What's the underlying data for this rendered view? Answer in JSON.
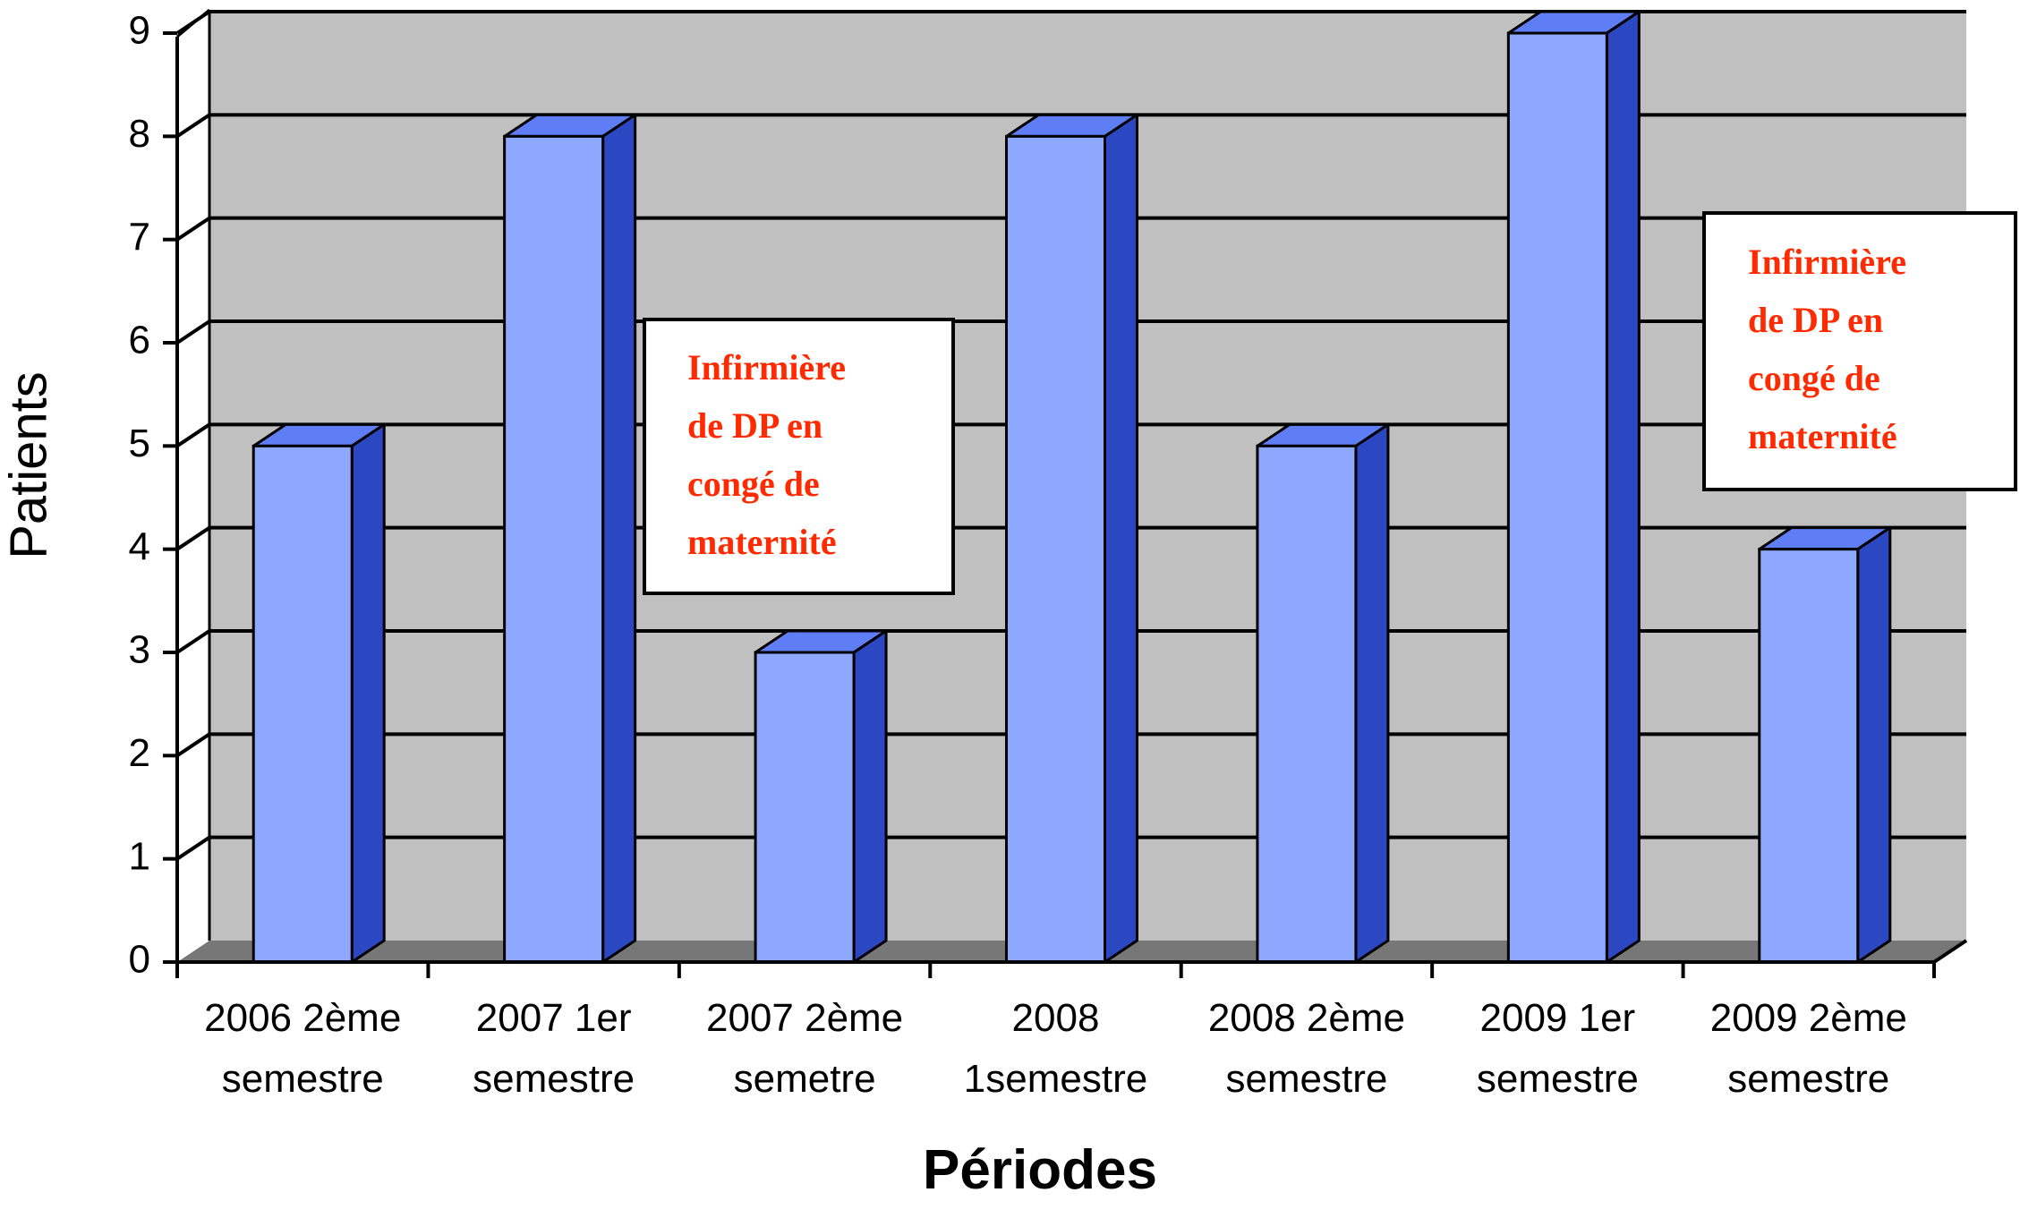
{
  "chart_data": {
    "type": "bar",
    "style": "3d-column",
    "xlabel": "Périodes",
    "ylabel": "Patients",
    "ylim": [
      0,
      9
    ],
    "yticks": [
      0,
      1,
      2,
      3,
      4,
      5,
      6,
      7,
      8,
      9
    ],
    "grid": true,
    "legend": "none",
    "categories": [
      [
        "2006 2ème",
        "semestre"
      ],
      [
        "2007 1er",
        "semestre"
      ],
      [
        "2007 2ème",
        "semetre"
      ],
      [
        "2008",
        "1semestre"
      ],
      [
        "2008 2ème",
        "semestre"
      ],
      [
        "2009 1er",
        "semestre"
      ],
      [
        "2009 2ème",
        "semestre"
      ]
    ],
    "values": [
      5,
      8,
      3,
      8,
      5,
      9,
      4
    ],
    "annotations": [
      {
        "lines": [
          "Infirmière",
          "de DP  en",
          "congé de",
          "maternité"
        ],
        "after_category": 2
      },
      {
        "lines": [
          "Infirmière",
          "de DP  en",
          "congé de",
          "maternité"
        ],
        "after_category": 6
      }
    ],
    "colors": {
      "bar_front": "#8fa8ff",
      "bar_side": "#2c47c2",
      "bar_top": "#5f7df5",
      "back_wall": "#c0c0c0",
      "floor": "#777777",
      "annotation_text": "#ff2a00",
      "gridline": "#000000"
    }
  }
}
